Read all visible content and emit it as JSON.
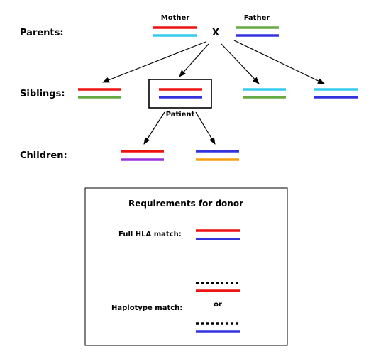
{
  "colors": {
    "red": "#ee1111",
    "cyan": "#33ccee",
    "green": "#66aa44",
    "blue": "#3333dd",
    "purple": "#9933dd",
    "orange": "#f5a010",
    "black": "#000000"
  },
  "pedigree": {
    "row_labels": {
      "parents": "Parents:",
      "siblings": "Siblings:",
      "children": "Children:"
    },
    "mother_label": "Mother",
    "father_label": "Father",
    "cross_symbol": "X",
    "patient_label": "Patient",
    "mother_haplotypes": [
      "red",
      "cyan"
    ],
    "father_haplotypes": [
      "green",
      "blue"
    ],
    "siblings": [
      {
        "haplotypes": [
          "red",
          "green"
        ]
      },
      {
        "haplotypes": [
          "red",
          "blue"
        ],
        "is_patient": true
      },
      {
        "haplotypes": [
          "cyan",
          "green"
        ]
      },
      {
        "haplotypes": [
          "cyan",
          "blue"
        ]
      }
    ],
    "children": [
      {
        "haplotypes": [
          "red",
          "purple"
        ]
      },
      {
        "haplotypes": [
          "blue",
          "orange"
        ]
      }
    ]
  },
  "requirements": {
    "title": "Requirements for donor",
    "full_match_label": "Full HLA match:",
    "full_match_haplotypes": [
      "red",
      "blue"
    ],
    "haplotype_match_label": "Haplotype match:",
    "or_label": "or",
    "haplotype_option_1": [
      "dashed",
      "red"
    ],
    "haplotype_option_2": [
      "dashed",
      "blue"
    ]
  }
}
